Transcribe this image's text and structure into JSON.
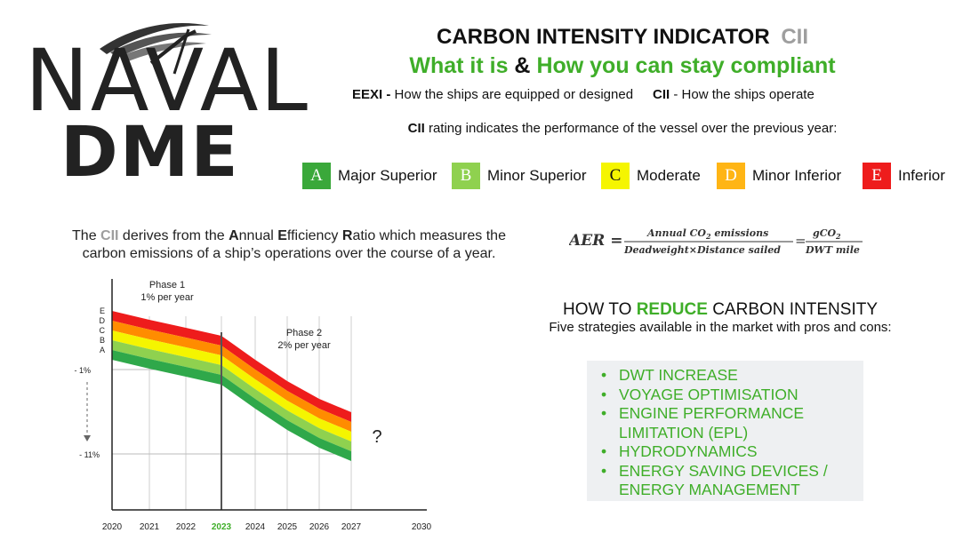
{
  "logo": {
    "line1": "NAVAL",
    "line2": "DME"
  },
  "header": {
    "title": "CARBON INTENSITY INDICATOR",
    "title_abbr": "CII",
    "subtitle_part1": "What it is",
    "subtitle_amp": "&",
    "subtitle_part2": "How you can stay compliant",
    "eexi_term": "EEXI -",
    "eexi_desc": " How the ships are equipped or designed",
    "cii_term": "CII",
    "cii_desc": " - How the ships operate",
    "rating_term": "CII",
    "rating_desc": " rating indicates the performance of the vessel over the previous year:"
  },
  "ratings": [
    {
      "letter": "A",
      "label": "Major Superior",
      "color": "#3aa83a",
      "text_color": "#ffffff"
    },
    {
      "letter": "B",
      "label": "Minor Superior",
      "color": "#8fd14f",
      "text_color": "#ffffff"
    },
    {
      "letter": "C",
      "label": "Moderate",
      "color": "#f5f500",
      "text_color": "#111111"
    },
    {
      "letter": "D",
      "label": "Minor Inferior",
      "color": "#ffb515",
      "text_color": "#ffffff"
    },
    {
      "letter": "E",
      "label": "Inferior",
      "color": "#ee1c1c",
      "text_color": "#ffffff"
    }
  ],
  "derivation": {
    "p1": "The ",
    "cii": "CII",
    "p2": " derives from the ",
    "a": "A",
    "p3": "nnual ",
    "e": "E",
    "p4": "fficiency ",
    "r": "R",
    "p5": "atio which measures the",
    "line2": "carbon emissions of a ship’s operations over the course of a year."
  },
  "formula": {
    "lhs": "AER =",
    "num": "Annual CO",
    "num_sub": "2",
    "num_tail": " emissions",
    "den": "Deadweight×Distance sailed",
    "eq": "=",
    "r_num": "gCO",
    "r_num_sub": "2",
    "r_den": "DWT mile"
  },
  "chart_data": {
    "type": "area",
    "x": [
      2020,
      2021,
      2022,
      2023,
      2024,
      2025,
      2026,
      2027
    ],
    "x_tick_labels": [
      "2020",
      "2021",
      "2022",
      "2023",
      "2024",
      "2025",
      "2026",
      "2027",
      "2030"
    ],
    "highlight_x": "2023",
    "highlight_color": "#3fae29",
    "y_ticks": [
      "- 1%",
      "- 11%"
    ],
    "band_letters": [
      "E",
      "D",
      "C",
      "B",
      "A"
    ],
    "annotations": {
      "phase1_title": "Phase 1",
      "phase1_rate": "1% per year",
      "phase2_title": "Phase 2",
      "phase2_rate": "2% per year",
      "unknown": "?"
    },
    "series": [
      {
        "name": "E",
        "color": "#ee1c1c"
      },
      {
        "name": "D",
        "color": "#ff8c00"
      },
      {
        "name": "C",
        "color": "#f5f500"
      },
      {
        "name": "B",
        "color": "#8fd14f"
      },
      {
        "name": "A",
        "color": "#2fa84a"
      }
    ]
  },
  "reduce": {
    "title_p1": "HOW TO ",
    "title_green": "REDUCE",
    "title_p2": " CARBON INTENSITY",
    "subtitle": "Five strategies available in the market with pros and cons:",
    "items": [
      "DWT INCREASE",
      "VOYAGE OPTIMISATION",
      "ENGINE PERFORMANCE LIMITATION (EPL)",
      "HYDRODYNAMICS",
      "ENERGY SAVING DEVICES / ENERGY MANAGEMENT"
    ]
  }
}
